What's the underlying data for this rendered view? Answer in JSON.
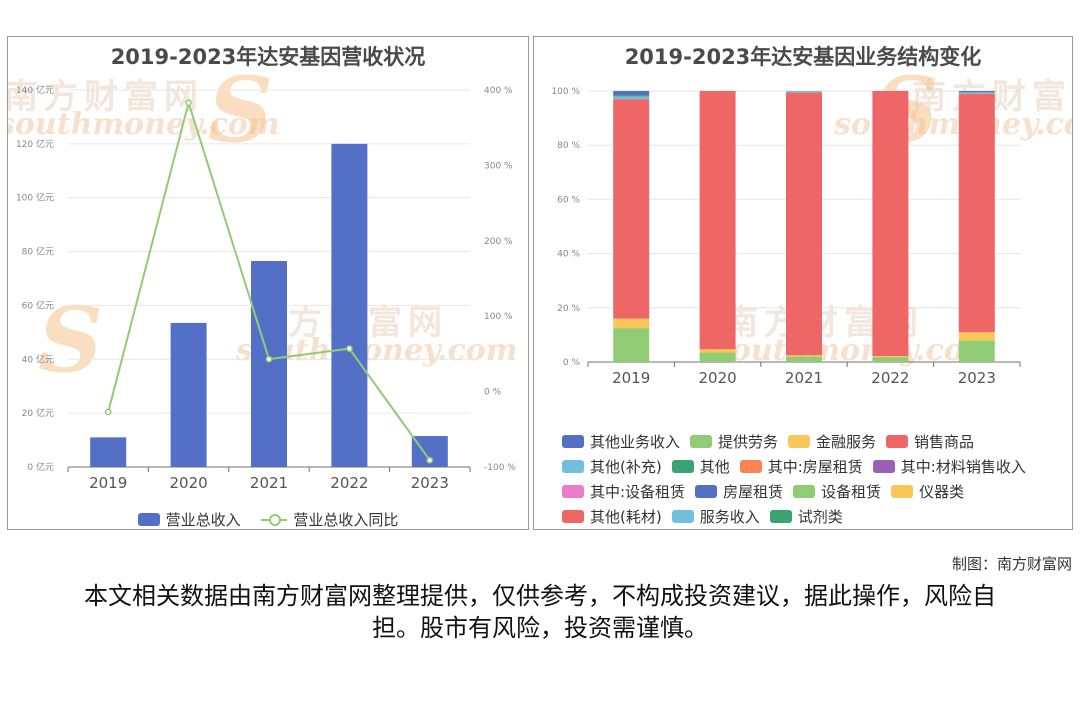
{
  "watermark": {
    "cn": "南方财富网",
    "en": "southmoney.com",
    "s": "S"
  },
  "credit": "制图：南方财富网",
  "disclaimer": "本文相关数据由南方财富网整理提供，仅供参考，不构成投资建议，据此操作，风险自担。股市有风险，投资需谨慎。",
  "chart_data": [
    {
      "type": "bar",
      "title": "2019-2023年达安基因营收状况",
      "categories": [
        "2019",
        "2020",
        "2021",
        "2022",
        "2023"
      ],
      "series": [
        {
          "name": "营业总收入",
          "type": "bar",
          "axis": "left",
          "color": "#5470c6",
          "values": [
            11,
            53.5,
            76.5,
            120,
            11.5
          ]
        },
        {
          "name": "营业总收入同比",
          "type": "line",
          "axis": "right",
          "color": "#91cc75",
          "values": [
            -27,
            383,
            43,
            57,
            -91
          ]
        }
      ],
      "y_left": {
        "min": 0,
        "max": 140,
        "step": 20,
        "tick_labels": [
          "0 亿元",
          "20 亿元",
          "40 亿元",
          "60 亿元",
          "80 亿元",
          "100 亿元",
          "120 亿元",
          "140 亿元"
        ]
      },
      "y_right": {
        "min": -100,
        "max": 400,
        "step": 100,
        "tick_labels": [
          "-100 %",
          "0 %",
          "100 %",
          "200 %",
          "300 %",
          "400 %"
        ]
      },
      "grid": true,
      "legend_position": "bottom"
    },
    {
      "type": "bar",
      "stacked": true,
      "title": "2019-2023年达安基因业务结构变化",
      "categories": [
        "2019",
        "2020",
        "2021",
        "2022",
        "2023"
      ],
      "y": {
        "min": 0,
        "max": 100,
        "tick_labels": [
          "0 %",
          "20 %",
          "40 %",
          "60 %",
          "80 %",
          "100 %"
        ]
      },
      "grid": true,
      "legend_position": "bottom",
      "series": [
        {
          "name": "其他业务收入",
          "color": "#5470c6",
          "values": [
            0,
            0,
            0,
            0,
            0
          ]
        },
        {
          "name": "提供劳务",
          "color": "#91cc75",
          "values": [
            12.5,
            3.5,
            2,
            1.8,
            8
          ]
        },
        {
          "name": "金融服务",
          "color": "#fac858",
          "values": [
            3.5,
            1.2,
            0.5,
            0.4,
            3
          ]
        },
        {
          "name": "销售商品",
          "color": "#ee6666",
          "values": [
            81,
            95.3,
            97,
            97.8,
            88
          ]
        },
        {
          "name": "其他(补充)",
          "color": "#73c0de",
          "values": [
            1,
            0,
            0.5,
            0,
            0.5
          ]
        },
        {
          "name": "其他",
          "color": "#3ba272",
          "values": [
            0.5,
            0,
            0,
            0,
            0
          ]
        },
        {
          "name": "其中:房屋租赁",
          "color": "#fc8452",
          "values": [
            0,
            0,
            0,
            0,
            0
          ]
        },
        {
          "name": "其中:材料销售收入",
          "color": "#9a60b4",
          "values": [
            0,
            0,
            0,
            0,
            0
          ]
        },
        {
          "name": "其中:设备租赁",
          "color": "#ea7ccc",
          "values": [
            0,
            0,
            0,
            0,
            0
          ]
        },
        {
          "name": "房屋租赁",
          "color": "#5470c6",
          "values": [
            1.5,
            0,
            0,
            0,
            0.5
          ]
        },
        {
          "name": "设备租赁",
          "color": "#91cc75",
          "values": [
            0,
            0,
            0,
            0,
            0
          ]
        },
        {
          "name": "仪器类",
          "color": "#fac858",
          "values": [
            0,
            0,
            0,
            0,
            0
          ]
        },
        {
          "name": "其他(耗材)",
          "color": "#ee6666",
          "values": [
            0,
            0,
            0,
            0,
            0
          ]
        },
        {
          "name": "服务收入",
          "color": "#73c0de",
          "values": [
            0,
            0,
            0,
            0,
            0
          ]
        },
        {
          "name": "试剂类",
          "color": "#3ba272",
          "values": [
            0,
            0,
            0,
            0,
            0
          ]
        }
      ],
      "legend_rows": [
        [
          "其他业务收入",
          "提供劳务",
          "金融服务",
          "销售商品"
        ],
        [
          "其他(补充)",
          "其他",
          "其中:房屋租赁",
          "其中:材料销售收入"
        ],
        [
          "其中:设备租赁",
          "房屋租赁",
          "设备租赁",
          "仪器类"
        ],
        [
          "其他(耗材)",
          "服务收入",
          "试剂类"
        ]
      ]
    }
  ]
}
